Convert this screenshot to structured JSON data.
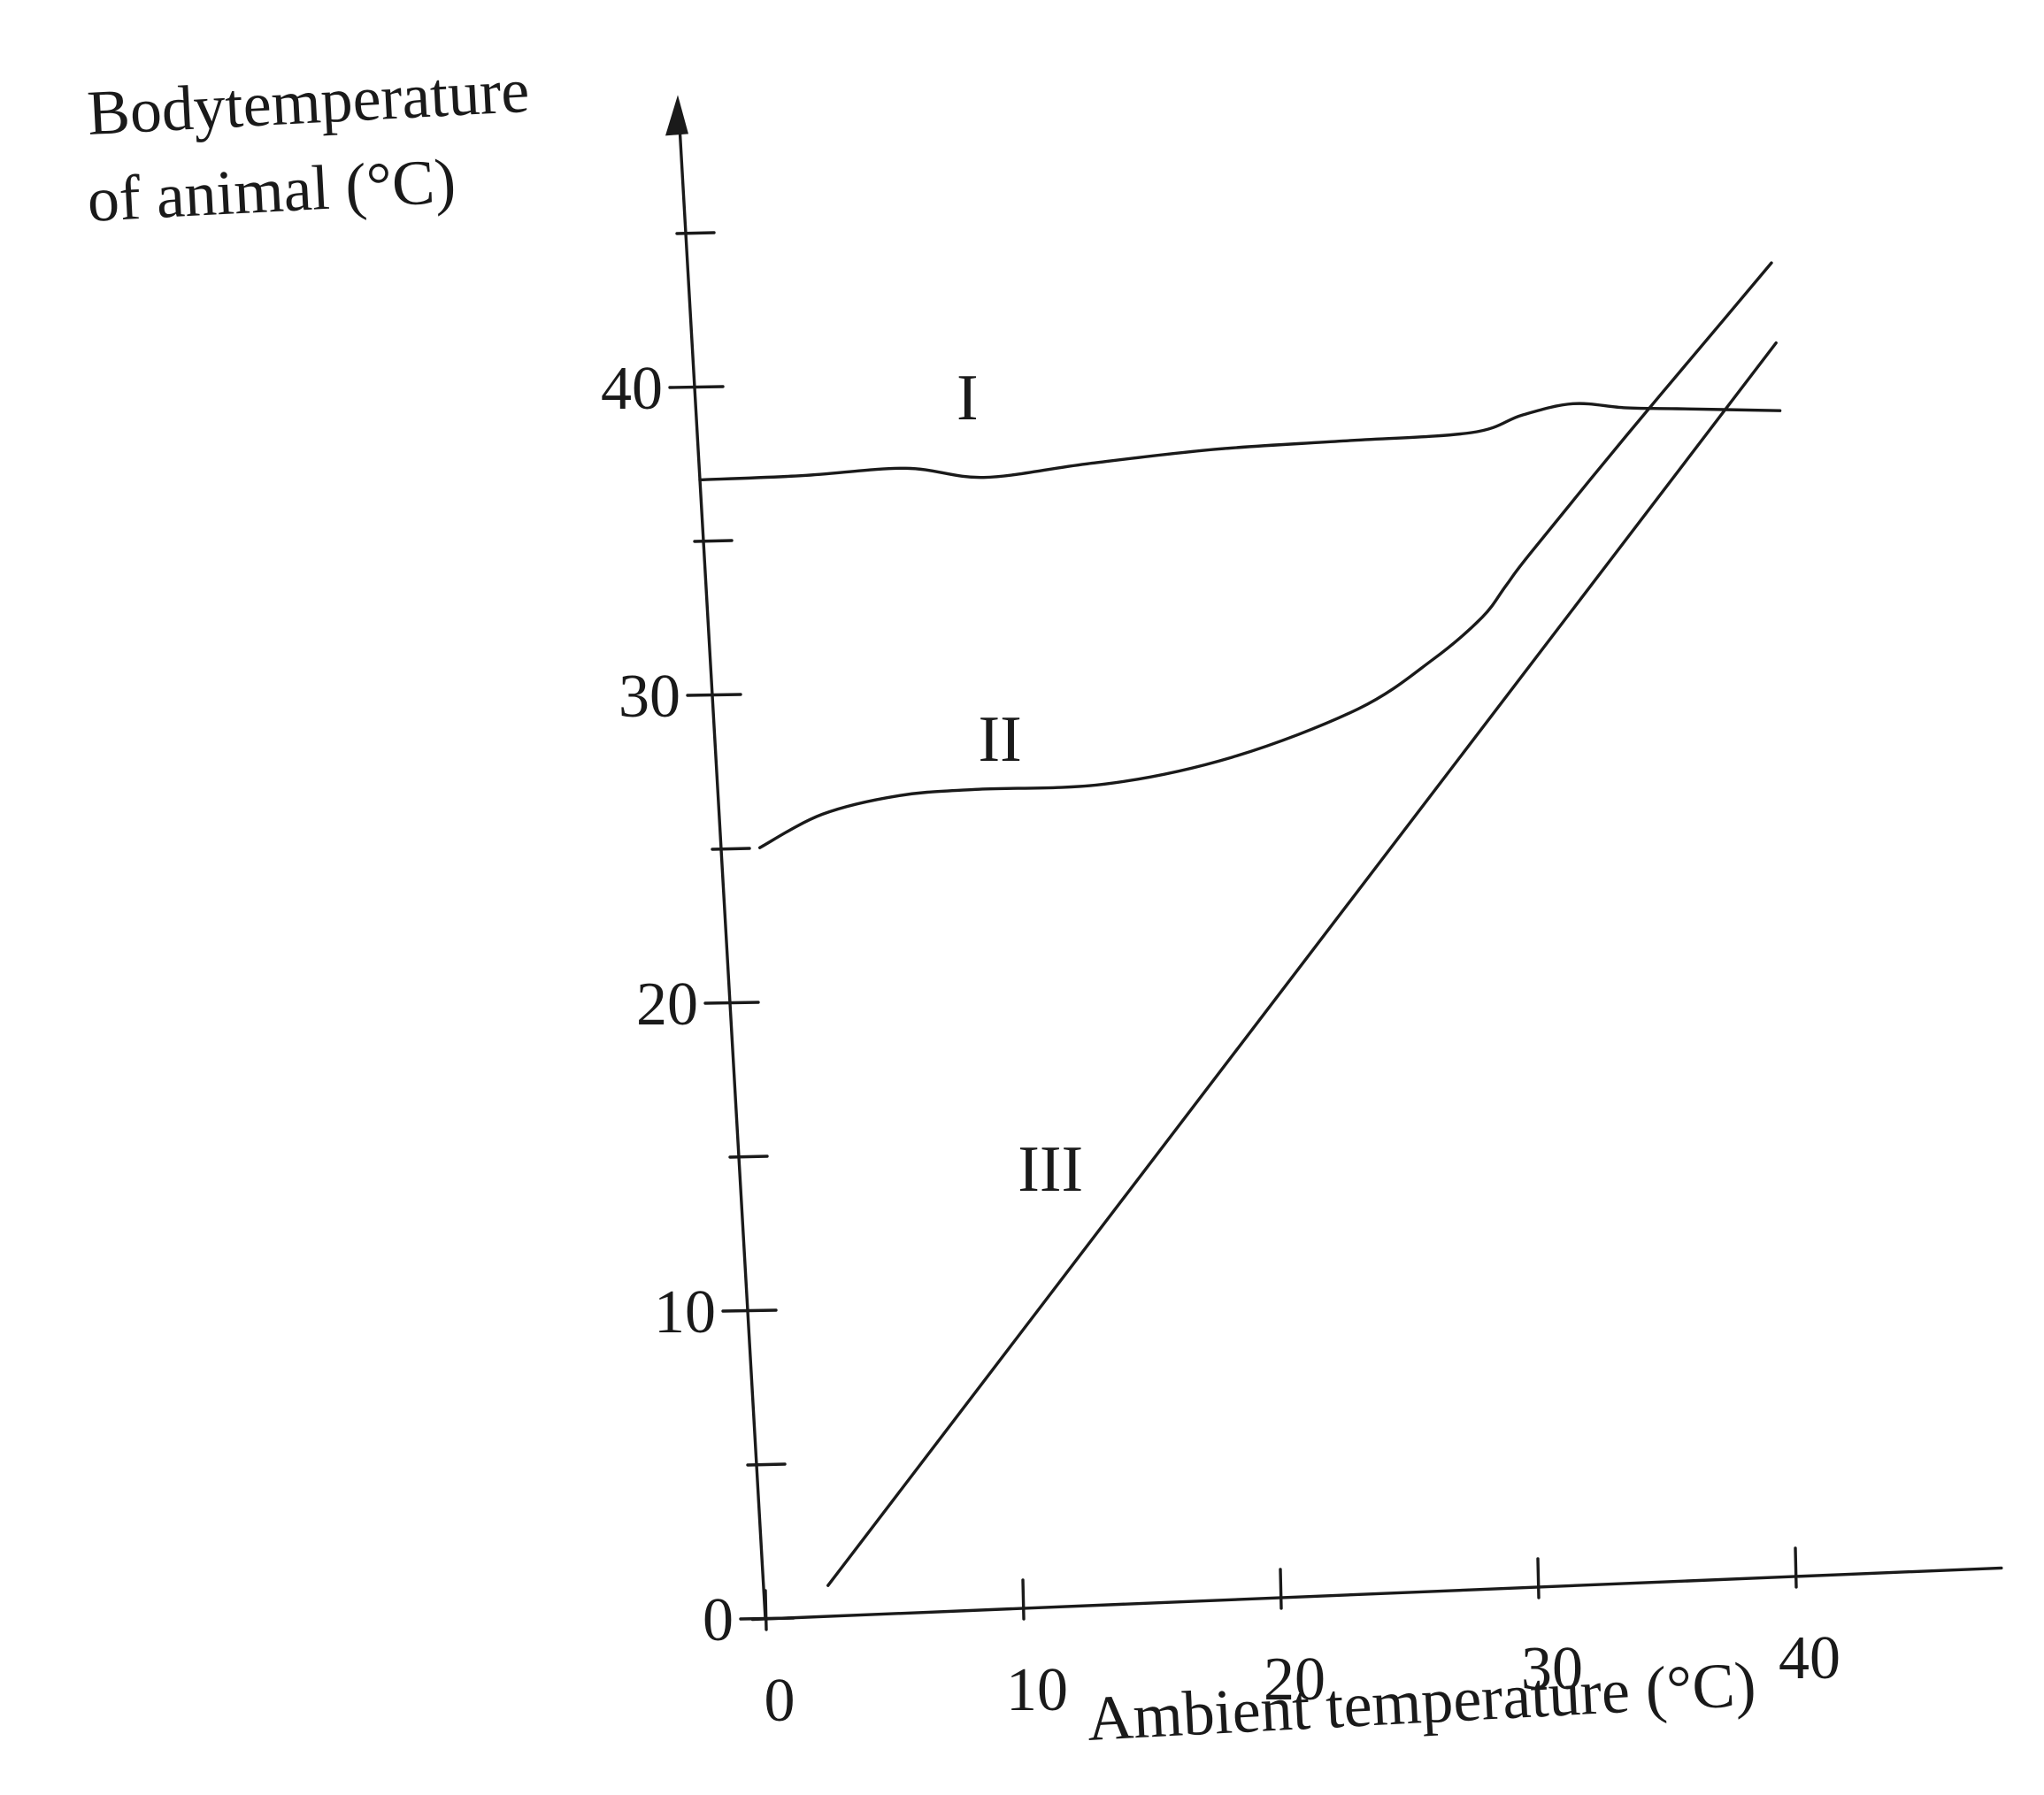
{
  "chart_data": {
    "type": "line",
    "title": "",
    "ylabel": [
      "Bodytemperature",
      "of animal (°C)"
    ],
    "xlabel": "Ambient temperature (°C)",
    "xlim": [
      0,
      48
    ],
    "ylim": [
      0,
      48
    ],
    "x_ticks": [
      0,
      10,
      20,
      30,
      40
    ],
    "x_tick_labels": [
      "0",
      "10",
      "20",
      "30",
      "40"
    ],
    "y_ticks": [
      0,
      10,
      20,
      30,
      40
    ],
    "y_tick_labels": [
      "0",
      "10",
      "20",
      "30",
      "40"
    ],
    "y_minor_ticks": [
      5,
      15,
      25,
      35,
      45
    ],
    "grid": false,
    "legend": "none",
    "series": [
      {
        "name": "I",
        "x": [
          0,
          4,
          8,
          11,
          15,
          20,
          25,
          30,
          32,
          34,
          36,
          38,
          42
        ],
        "y": [
          37,
          37,
          37.1,
          36.7,
          37,
          37.3,
          37.4,
          37.5,
          38,
          38.3,
          38.1,
          38,
          37.8
        ],
        "label_at": [
          10.5,
          38.6
        ]
      },
      {
        "name": "II",
        "x": [
          1.5,
          4,
          7,
          10,
          15,
          20,
          25,
          28,
          30,
          31,
          32,
          36,
          40,
          42
        ],
        "y": [
          25,
          26,
          26.5,
          26.6,
          26.6,
          27.3,
          28.7,
          30.2,
          31.5,
          32.5,
          33.5,
          37.2,
          40.8,
          42.6
        ],
        "label_at": [
          11,
          27.5
        ]
      },
      {
        "name": "III",
        "x": [
          2.5,
          42
        ],
        "y": [
          1,
          40
        ],
        "label_at": [
          12,
          13.5
        ]
      }
    ]
  }
}
